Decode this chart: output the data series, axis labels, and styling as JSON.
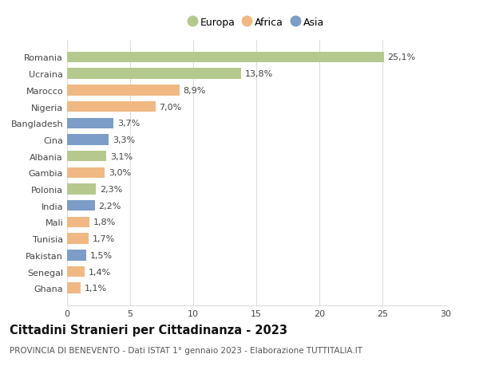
{
  "categories": [
    "Romania",
    "Ucraina",
    "Marocco",
    "Nigeria",
    "Bangladesh",
    "Cina",
    "Albania",
    "Gambia",
    "Polonia",
    "India",
    "Mali",
    "Tunisia",
    "Pakistan",
    "Senegal",
    "Ghana"
  ],
  "values": [
    25.1,
    13.8,
    8.9,
    7.0,
    3.7,
    3.3,
    3.1,
    3.0,
    2.3,
    2.2,
    1.8,
    1.7,
    1.5,
    1.4,
    1.1
  ],
  "continents": [
    "Europa",
    "Europa",
    "Africa",
    "Africa",
    "Asia",
    "Asia",
    "Europa",
    "Africa",
    "Europa",
    "Asia",
    "Africa",
    "Africa",
    "Asia",
    "Africa",
    "Africa"
  ],
  "colors": {
    "Europa": "#b5c98e",
    "Africa": "#f0b984",
    "Asia": "#7b9dc7"
  },
  "legend_order": [
    "Europa",
    "Africa",
    "Asia"
  ],
  "title": "Cittadini Stranieri per Cittadinanza - 2023",
  "subtitle": "PROVINCIA DI BENEVENTO - Dati ISTAT 1° gennaio 2023 - Elaborazione TUTTITALIA.IT",
  "xlim": [
    0,
    30
  ],
  "xticks": [
    0,
    5,
    10,
    15,
    20,
    25,
    30
  ],
  "bar_height": 0.65,
  "background_color": "#ffffff",
  "grid_color": "#dddddd",
  "label_fontsize": 8,
  "tick_fontsize": 8,
  "title_fontsize": 10.5,
  "subtitle_fontsize": 7.5
}
